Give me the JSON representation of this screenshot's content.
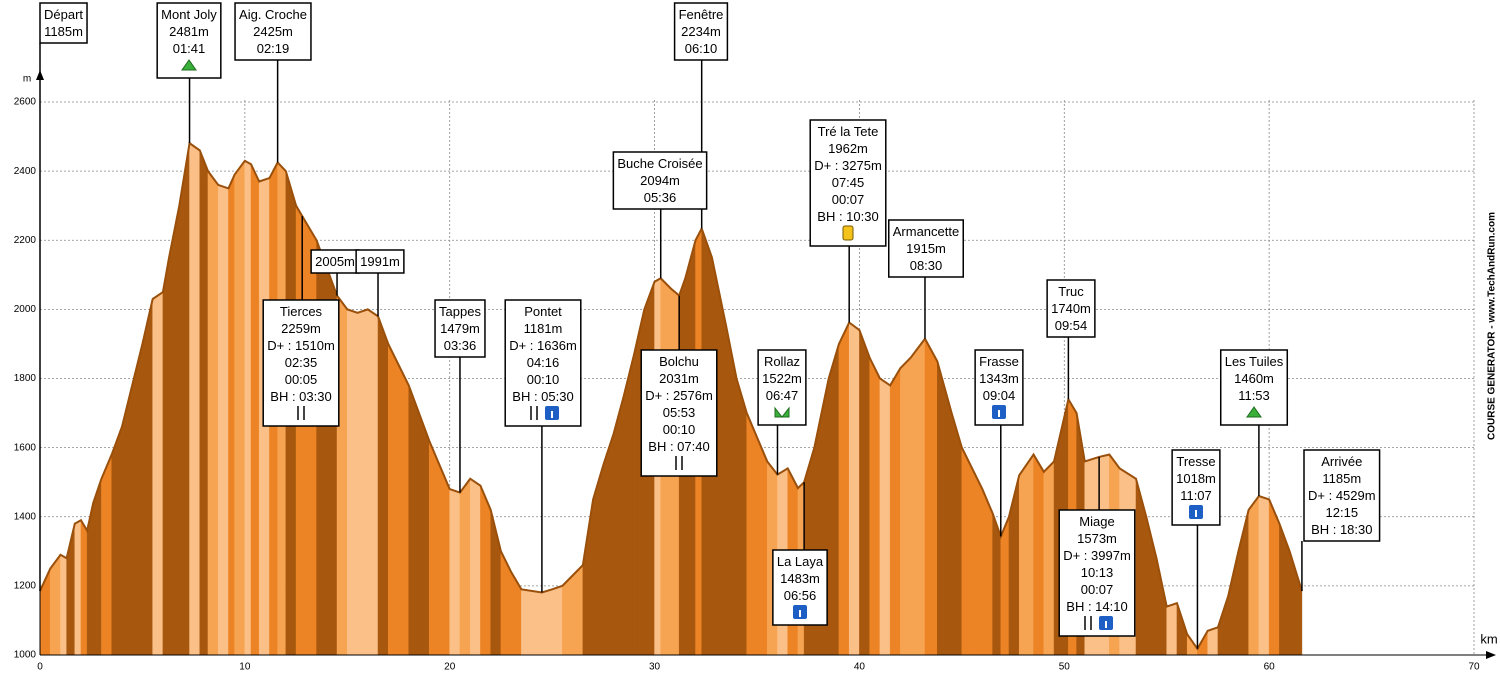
{
  "chart_data": {
    "type": "area",
    "x_label": "km",
    "y_label": "m",
    "credit": "COURSE GENERATOR - www.TechAndRun.com",
    "xlim": [
      0,
      70
    ],
    "xticks": [
      0,
      10,
      20,
      30,
      40,
      50,
      60,
      70
    ],
    "ylim": [
      1000,
      2600
    ],
    "yticks": [
      1000,
      1200,
      1400,
      1600,
      1800,
      2000,
      2200,
      2400,
      2600
    ],
    "grid": true,
    "x": [
      0,
      0.5,
      1,
      1.3,
      1.7,
      2,
      2.3,
      2.6,
      3,
      3.5,
      4,
      4.5,
      5,
      5.5,
      6,
      6.3,
      6.8,
      7.3,
      7.8,
      8.2,
      8.7,
      9.2,
      9.5,
      10,
      10.3,
      10.7,
      11.2,
      11.6,
      12,
      12.5,
      13,
      13.5,
      14,
      14.5,
      15,
      15.5,
      16,
      16.5,
      17,
      18,
      19,
      20,
      20.5,
      21,
      21.5,
      22,
      22.5,
      23,
      23.5,
      24.5,
      25,
      25.5,
      26,
      26.5,
      27,
      27.5,
      28,
      28.5,
      29,
      29.5,
      30,
      30.3,
      30.8,
      31.2,
      31.5,
      32,
      32.3,
      32.8,
      33.5,
      34,
      34.5,
      35,
      35.5,
      36,
      36.5,
      37,
      37.3,
      37.8,
      38.5,
      39,
      39.5,
      40,
      40.5,
      41,
      41.5,
      42,
      42.5,
      43.2,
      43.8,
      44.5,
      45,
      45.5,
      46,
      46.5,
      46.9,
      47.3,
      47.8,
      48.5,
      49,
      49.5,
      50.2,
      50.6,
      51,
      51.7,
      52.2,
      52.7,
      53.5,
      54,
      54.5,
      55,
      55.5,
      56,
      56.5,
      57,
      57.5,
      58,
      58.5,
      59,
      59.5,
      60,
      60.5,
      61,
      61.6
    ],
    "values": [
      1185,
      1250,
      1290,
      1280,
      1380,
      1390,
      1360,
      1440,
      1510,
      1580,
      1660,
      1780,
      1900,
      2030,
      2050,
      2150,
      2300,
      2481,
      2460,
      2400,
      2360,
      2350,
      2390,
      2430,
      2420,
      2370,
      2380,
      2425,
      2400,
      2300,
      2250,
      2200,
      2120,
      2040,
      2000,
      1990,
      2000,
      1980,
      1900,
      1780,
      1620,
      1480,
      1470,
      1510,
      1490,
      1420,
      1300,
      1240,
      1190,
      1181,
      1190,
      1200,
      1230,
      1260,
      1450,
      1550,
      1640,
      1750,
      1870,
      2000,
      2080,
      2090,
      2060,
      2040,
      2090,
      2200,
      2234,
      2150,
      1950,
      1800,
      1700,
      1630,
      1560,
      1522,
      1540,
      1483,
      1500,
      1600,
      1800,
      1900,
      1962,
      1940,
      1860,
      1800,
      1780,
      1830,
      1860,
      1915,
      1850,
      1700,
      1600,
      1540,
      1480,
      1410,
      1343,
      1400,
      1520,
      1580,
      1530,
      1560,
      1740,
      1700,
      1560,
      1573,
      1580,
      1540,
      1510,
      1400,
      1280,
      1140,
      1150,
      1060,
      1018,
      1070,
      1080,
      1170,
      1300,
      1420,
      1460,
      1450,
      1380,
      1300,
      1185
    ],
    "annotations": [
      {
        "x": 0,
        "lines": [
          "Départ",
          "1185m"
        ]
      },
      {
        "x": 7.3,
        "lines": [
          "Mont Joly",
          "2481m",
          "01:41"
        ]
      },
      {
        "x": 11.6,
        "lines": [
          "Aig. Croche",
          "2425m",
          "02:19"
        ]
      },
      {
        "x": 32.3,
        "lines": [
          "Fenêtre",
          "2234m",
          "06:10"
        ]
      },
      {
        "x": 30.3,
        "lines": [
          "Buche Croisée",
          "2094m",
          "05:36"
        ]
      },
      {
        "x": 39.5,
        "lines": [
          "Tré la Tete",
          "1962m",
          "D+ : 3275m",
          "07:45",
          "00:07",
          "BH : 10:30"
        ]
      },
      {
        "x": 43.2,
        "lines": [
          "Armancette",
          "1915m",
          "08:30"
        ]
      },
      {
        "x": 14.5,
        "lines": [
          "2005m"
        ]
      },
      {
        "x": 16.5,
        "lines": [
          "1991m"
        ]
      },
      {
        "x": 12.8,
        "lines": [
          "Tierces",
          "2259m",
          "D+ : 1510m",
          "02:35",
          "00:05",
          "BH : 03:30"
        ]
      },
      {
        "x": 20.5,
        "lines": [
          "Tappes",
          "1479m",
          "03:36"
        ]
      },
      {
        "x": 24.5,
        "lines": [
          "Pontet",
          "1181m",
          "D+ : 1636m",
          "04:16",
          "00:10",
          "BH : 05:30"
        ]
      },
      {
        "x": 31.2,
        "lines": [
          "Bolchu",
          "2031m",
          "D+ : 2576m",
          "05:53",
          "00:10",
          "BH : 07:40"
        ]
      },
      {
        "x": 36,
        "lines": [
          "Rollaz",
          "1522m",
          "06:47"
        ]
      },
      {
        "x": 37.3,
        "lines": [
          "La Laya",
          "1483m",
          "06:56"
        ]
      },
      {
        "x": 46.9,
        "lines": [
          "Frasse",
          "1343m",
          "09:04"
        ]
      },
      {
        "x": 50.2,
        "lines": [
          "Truc",
          "1740m",
          "09:54"
        ]
      },
      {
        "x": 51.7,
        "lines": [
          "Miage",
          "1573m",
          "D+ : 3997m",
          "10:13",
          "00:07",
          "BH : 14:10"
        ]
      },
      {
        "x": 56.5,
        "lines": [
          "Tresse",
          "1018m",
          "11:07"
        ]
      },
      {
        "x": 59.5,
        "lines": [
          "Les Tuiles",
          "1460m",
          "11:53"
        ]
      },
      {
        "x": 61.6,
        "lines": [
          "Arrivée",
          "1185m",
          "D+ : 4529m",
          "12:15",
          "BH : 18:30"
        ]
      }
    ]
  }
}
